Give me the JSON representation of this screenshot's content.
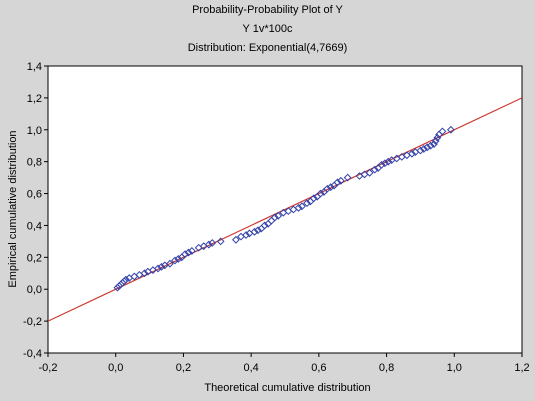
{
  "chart_data": {
    "type": "scatter",
    "title": "Probability-Probability Plot of Y",
    "subtitle_lines": [
      "Y 1v*100c",
      "Distribution: Exponential(4,7669)"
    ],
    "xlabel": "Theoretical cumulative distribution",
    "ylabel": "Empirical cumulative distribution",
    "xlim": [
      -0.2,
      1.2
    ],
    "ylim": [
      -0.4,
      1.4
    ],
    "x_ticks": [
      "-0,2",
      "0,0",
      "0,2",
      "0,4",
      "0,6",
      "0,8",
      "1,0",
      "1,2"
    ],
    "x_tick_values": [
      -0.2,
      0.0,
      0.2,
      0.4,
      0.6,
      0.8,
      1.0,
      1.2
    ],
    "y_ticks": [
      "-0,4",
      "-0,2",
      "0,0",
      "0,2",
      "0,4",
      "0,6",
      "0,8",
      "1,0",
      "1,2",
      "1,4"
    ],
    "y_tick_values": [
      -0.4,
      -0.2,
      0.0,
      0.2,
      0.4,
      0.6,
      0.8,
      1.0,
      1.2,
      1.4
    ],
    "grid": false,
    "reference_line": {
      "x": [
        -0.2,
        1.2
      ],
      "y": [
        -0.2,
        1.2
      ],
      "color": "#cc3a32"
    },
    "marker_color": "#3340a8",
    "series": [
      {
        "values": [
          [
            0.005,
            0.01
          ],
          [
            0.01,
            0.02
          ],
          [
            0.015,
            0.03
          ],
          [
            0.02,
            0.04
          ],
          [
            0.025,
            0.05
          ],
          [
            0.03,
            0.06
          ],
          [
            0.04,
            0.07
          ],
          [
            0.055,
            0.08
          ],
          [
            0.07,
            0.09
          ],
          [
            0.085,
            0.1
          ],
          [
            0.095,
            0.11
          ],
          [
            0.11,
            0.12
          ],
          [
            0.125,
            0.13
          ],
          [
            0.135,
            0.14
          ],
          [
            0.145,
            0.15
          ],
          [
            0.16,
            0.16
          ],
          [
            0.175,
            0.18
          ],
          [
            0.185,
            0.19
          ],
          [
            0.195,
            0.2
          ],
          [
            0.205,
            0.22
          ],
          [
            0.215,
            0.23
          ],
          [
            0.225,
            0.24
          ],
          [
            0.245,
            0.26
          ],
          [
            0.26,
            0.27
          ],
          [
            0.275,
            0.28
          ],
          [
            0.285,
            0.29
          ],
          [
            0.31,
            0.3
          ],
          [
            0.355,
            0.31
          ],
          [
            0.37,
            0.33
          ],
          [
            0.385,
            0.34
          ],
          [
            0.395,
            0.35
          ],
          [
            0.41,
            0.36
          ],
          [
            0.42,
            0.37
          ],
          [
            0.43,
            0.38
          ],
          [
            0.44,
            0.4
          ],
          [
            0.45,
            0.41
          ],
          [
            0.46,
            0.43
          ],
          [
            0.47,
            0.45
          ],
          [
            0.48,
            0.46
          ],
          [
            0.495,
            0.48
          ],
          [
            0.51,
            0.49
          ],
          [
            0.525,
            0.5
          ],
          [
            0.54,
            0.51
          ],
          [
            0.55,
            0.52
          ],
          [
            0.565,
            0.54
          ],
          [
            0.575,
            0.55
          ],
          [
            0.585,
            0.57
          ],
          [
            0.595,
            0.58
          ],
          [
            0.605,
            0.6
          ],
          [
            0.615,
            0.61
          ],
          [
            0.625,
            0.63
          ],
          [
            0.635,
            0.64
          ],
          [
            0.645,
            0.65
          ],
          [
            0.655,
            0.67
          ],
          [
            0.665,
            0.68
          ],
          [
            0.685,
            0.7
          ],
          [
            0.72,
            0.71
          ],
          [
            0.735,
            0.72
          ],
          [
            0.75,
            0.73
          ],
          [
            0.765,
            0.75
          ],
          [
            0.775,
            0.76
          ],
          [
            0.785,
            0.78
          ],
          [
            0.795,
            0.79
          ],
          [
            0.805,
            0.8
          ],
          [
            0.815,
            0.81
          ],
          [
            0.83,
            0.82
          ],
          [
            0.845,
            0.83
          ],
          [
            0.86,
            0.84
          ],
          [
            0.875,
            0.85
          ],
          [
            0.885,
            0.86
          ],
          [
            0.9,
            0.87
          ],
          [
            0.91,
            0.88
          ],
          [
            0.92,
            0.89
          ],
          [
            0.93,
            0.9
          ],
          [
            0.94,
            0.91
          ],
          [
            0.945,
            0.93
          ],
          [
            0.95,
            0.95
          ],
          [
            0.955,
            0.97
          ],
          [
            0.965,
            0.99
          ],
          [
            0.99,
            1.0
          ]
        ]
      }
    ]
  },
  "colors": {
    "background": "#d6d6d6",
    "plot_area": "#ffffff"
  }
}
